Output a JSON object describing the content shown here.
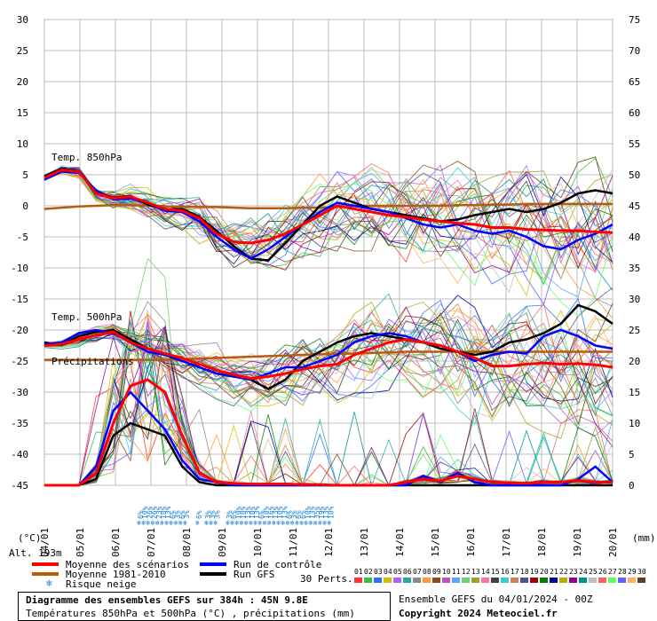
{
  "chart_data": {
    "type": "line",
    "panels": [
      "Temp. 850hPa",
      "Temp. 500hPa",
      "Précipitations"
    ],
    "left_axis": {
      "unit": "(°C)",
      "ylim": [
        -45,
        30
      ],
      "ticks": [
        30,
        25,
        20,
        15,
        10,
        5,
        0,
        -5,
        -10,
        -15,
        -20,
        -25,
        -30,
        -35,
        -40,
        -45
      ]
    },
    "right_axis": {
      "unit": "(mm)",
      "ylim": [
        0,
        75
      ],
      "ticks": [
        75,
        70,
        65,
        60,
        55,
        50,
        45,
        40,
        35,
        30,
        25,
        20,
        15,
        10,
        5,
        0
      ]
    },
    "x_labels": [
      "04/01",
      "05/01",
      "06/01",
      "07/01",
      "08/01",
      "09/01",
      "10/01",
      "11/01",
      "12/01",
      "13/01",
      "14/01",
      "15/01",
      "16/01",
      "17/01",
      "18/01",
      "19/01",
      "20/01"
    ],
    "altitude_label": "Alt. 193m",
    "series": [
      {
        "name": "Moyenne des scénarios",
        "color": "#ff0000",
        "t850": [
          4.5,
          5.8,
          5.5,
          2,
          1.2,
          1.5,
          0.5,
          -0.5,
          -0.8,
          -2,
          -4.5,
          -5.8,
          -6,
          -5.5,
          -4.5,
          -3,
          -1.5,
          0,
          -0.5,
          -1,
          -1.5,
          -1.8,
          -2.2,
          -2.5,
          -2.8,
          -3,
          -3.5,
          -3.5,
          -3.8,
          -3.9,
          -4,
          -4,
          -4.2,
          -4.3
        ],
        "t500": [
          -22.5,
          -22.3,
          -21.5,
          -20.8,
          -20.3,
          -22,
          -23,
          -23.8,
          -24.5,
          -25.5,
          -26.5,
          -27.2,
          -27.8,
          -27.5,
          -27,
          -26.3,
          -25.8,
          -25.5,
          -24,
          -23,
          -22,
          -21.5,
          -22,
          -22.5,
          -23.5,
          -24.5,
          -25.8,
          -25.8,
          -25.5,
          -25.3,
          -25.5,
          -25.4,
          -25.6,
          -26
        ],
        "precip": [
          0,
          0,
          0,
          2,
          10,
          16,
          17,
          15,
          8,
          2,
          0.5,
          0.3,
          0.2,
          0.2,
          0.2,
          0.1,
          0.1,
          0,
          0,
          0,
          0,
          0.5,
          1,
          0.7,
          1.5,
          1,
          0.5,
          0.4,
          0.3,
          0.5,
          0.5,
          0.8,
          0.5,
          0.5
        ]
      },
      {
        "name": "Moyenne 1981-2010",
        "color": "#b85c0c",
        "t850": [
          -0.5,
          -0.3,
          -0.1,
          0,
          0.1,
          0.1,
          0,
          -0.1,
          -0.1,
          -0.2,
          -0.2,
          -0.3,
          -0.4,
          -0.4,
          -0.4,
          -0.3,
          -0.3,
          -0.2,
          0,
          0,
          0,
          0,
          0,
          0,
          0.1,
          0.1,
          0.2,
          0.2,
          0.3,
          0.3,
          0.3,
          0.3,
          0.3,
          0.3
        ],
        "t500": [
          -24.8,
          -24.8,
          -24.8,
          -24.8,
          -24.8,
          -24.8,
          -24.8,
          -24.8,
          -24.7,
          -24.6,
          -24.5,
          -24.4,
          -24.3,
          -24.2,
          -24.1,
          -24.0,
          -23.9,
          -23.8,
          -23.8,
          -23.7,
          -23.6,
          -23.5,
          -23.5,
          -23.5,
          -23.5,
          -23.5,
          -23.5,
          -23.5,
          -23.5,
          -23.5,
          -23.5,
          -23.5,
          -23.5,
          -23.5
        ]
      },
      {
        "name": "Run de contrôle",
        "color": "#0000ff",
        "t850": [
          4.2,
          5.5,
          5.3,
          2.5,
          1,
          1.2,
          0.5,
          -0.8,
          -1,
          -2.5,
          -5,
          -7,
          -8.5,
          -7,
          -5,
          -3,
          -1,
          0.5,
          0,
          -0.5,
          -1,
          -2,
          -3,
          -3.5,
          -3,
          -4,
          -4.5,
          -4,
          -5,
          -6.5,
          -7,
          -5.5,
          -4.5,
          -3
        ],
        "t500": [
          -22.3,
          -22,
          -20.5,
          -20,
          -20.5,
          -22,
          -23.5,
          -24,
          -25,
          -26,
          -27,
          -27.5,
          -28,
          -27,
          -26,
          -26,
          -25,
          -24,
          -22,
          -21,
          -20.5,
          -21,
          -22,
          -22.5,
          -23.5,
          -25,
          -24,
          -23.5,
          -23.8,
          -21,
          -20,
          -21,
          -22.5,
          -23
        ],
        "precip": [
          0,
          0,
          0,
          3,
          12,
          15,
          12,
          9,
          4,
          1,
          0.5,
          0,
          0,
          0,
          0,
          0,
          0,
          0,
          0,
          0,
          0,
          0,
          1.5,
          0.5,
          2,
          0.5,
          0,
          0,
          0,
          0,
          0,
          1,
          3,
          0.5
        ]
      },
      {
        "name": "Run GFS",
        "color": "#000000",
        "t850": [
          4.8,
          6,
          5.6,
          2.2,
          1.3,
          1.6,
          0.2,
          -0.6,
          -0.5,
          -1.8,
          -4,
          -6.5,
          -8.5,
          -8.8,
          -6,
          -3,
          0,
          1.5,
          0.5,
          -0.5,
          -1,
          -1.5,
          -2,
          -2.5,
          -2.2,
          -1.5,
          -1,
          -0.5,
          -1,
          -0.5,
          0.5,
          2,
          2.5,
          2
        ],
        "t500": [
          -22,
          -22.4,
          -21,
          -20.3,
          -20,
          -21.5,
          -23,
          -24,
          -25,
          -26,
          -27,
          -27.5,
          -28,
          -29.5,
          -28,
          -25,
          -23.5,
          -22,
          -21,
          -20.5,
          -21,
          -21.5,
          -22,
          -23,
          -23.5,
          -24,
          -23.5,
          -22,
          -21.5,
          -20.5,
          -19,
          -16,
          -17,
          -19
        ],
        "precip": [
          0,
          0,
          0,
          1,
          8,
          10,
          9,
          8,
          3,
          0.5,
          0,
          0,
          0,
          0,
          0,
          0,
          0,
          0,
          0,
          0,
          0,
          0,
          0,
          0,
          0,
          0,
          0,
          0,
          0,
          0,
          0,
          0,
          0,
          0
        ]
      }
    ],
    "snow_risk": [
      {
        "x": 2.7,
        "label": "6%"
      },
      {
        "x": 2.83,
        "label": "10%"
      },
      {
        "x": 2.96,
        "label": "26%"
      },
      {
        "x": 3.09,
        "label": "26%"
      },
      {
        "x": 3.22,
        "label": "23%"
      },
      {
        "x": 3.35,
        "label": "10%"
      },
      {
        "x": 3.48,
        "label": "13%"
      },
      {
        "x": 3.61,
        "label": "6%"
      },
      {
        "x": 3.74,
        "label": "3%"
      },
      {
        "x": 3.87,
        "label": "6%"
      },
      {
        "x": 4.0,
        "label": "3%"
      },
      {
        "x": 4.35,
        "label": "6%"
      },
      {
        "x": 4.6,
        "label": "3%"
      },
      {
        "x": 4.73,
        "label": "3%"
      },
      {
        "x": 4.86,
        "label": "3%"
      },
      {
        "x": 5.2,
        "label": "3%"
      },
      {
        "x": 5.33,
        "label": "6%"
      },
      {
        "x": 5.46,
        "label": "10%"
      },
      {
        "x": 5.59,
        "label": "10%"
      },
      {
        "x": 5.72,
        "label": "13%"
      },
      {
        "x": 5.85,
        "label": "10%"
      },
      {
        "x": 5.98,
        "label": "13%"
      },
      {
        "x": 6.11,
        "label": "6%"
      },
      {
        "x": 6.24,
        "label": "10%"
      },
      {
        "x": 6.37,
        "label": "16%"
      },
      {
        "x": 6.5,
        "label": "13%"
      },
      {
        "x": 6.63,
        "label": "10%"
      },
      {
        "x": 6.76,
        "label": "13%"
      },
      {
        "x": 6.89,
        "label": "6%"
      },
      {
        "x": 7.02,
        "label": "3%"
      },
      {
        "x": 7.15,
        "label": "6%"
      },
      {
        "x": 7.28,
        "label": "6%"
      },
      {
        "x": 7.41,
        "label": "10%"
      },
      {
        "x": 7.54,
        "label": "13%"
      },
      {
        "x": 7.67,
        "label": "35%"
      },
      {
        "x": 7.8,
        "label": "19%"
      },
      {
        "x": 7.93,
        "label": "13%"
      },
      {
        "x": 8.06,
        "label": "10%"
      }
    ]
  },
  "legend": {
    "mean": "Moyenne des scénarios",
    "clim": "Moyenne 1981-2010",
    "control": "Run de contrôle",
    "gfs": "Run GFS",
    "snow": "Risque neige",
    "perts": "30 Perts."
  },
  "pert_numbers": [
    "01",
    "02",
    "03",
    "04",
    "05",
    "06",
    "07",
    "08",
    "09",
    "10",
    "11",
    "12",
    "13",
    "14",
    "15",
    "16",
    "17",
    "18",
    "19",
    "20",
    "21",
    "22",
    "23",
    "24",
    "25",
    "26",
    "27",
    "28",
    "29",
    "30"
  ],
  "pert_colors": [
    "#ff3030",
    "#38c038",
    "#3070ff",
    "#d0c000",
    "#b060ff",
    "#2aa8a8",
    "#8a8a8a",
    "#ff9a30",
    "#8a4a1a",
    "#c050c0",
    "#60a0ff",
    "#70d070",
    "#a0a030",
    "#ff70b0",
    "#404040",
    "#30d0d0",
    "#d08050",
    "#505090",
    "#a00000",
    "#008000",
    "#000090",
    "#b0b000",
    "#900090",
    "#009090",
    "#c0c0c0",
    "#ff6060",
    "#60ff60",
    "#6060ff",
    "#ffb060",
    "#604020"
  ],
  "footer": {
    "title": "Diagramme des ensembles GEFS sur 384h : 45N 9.8E",
    "subtitle": "Températures 850hPa et 500hPa (°C) , précipitations (mm)",
    "run": "Ensemble GEFS du 04/01/2024 - 00Z",
    "copyright": "Copyright 2024 Meteociel.fr"
  }
}
